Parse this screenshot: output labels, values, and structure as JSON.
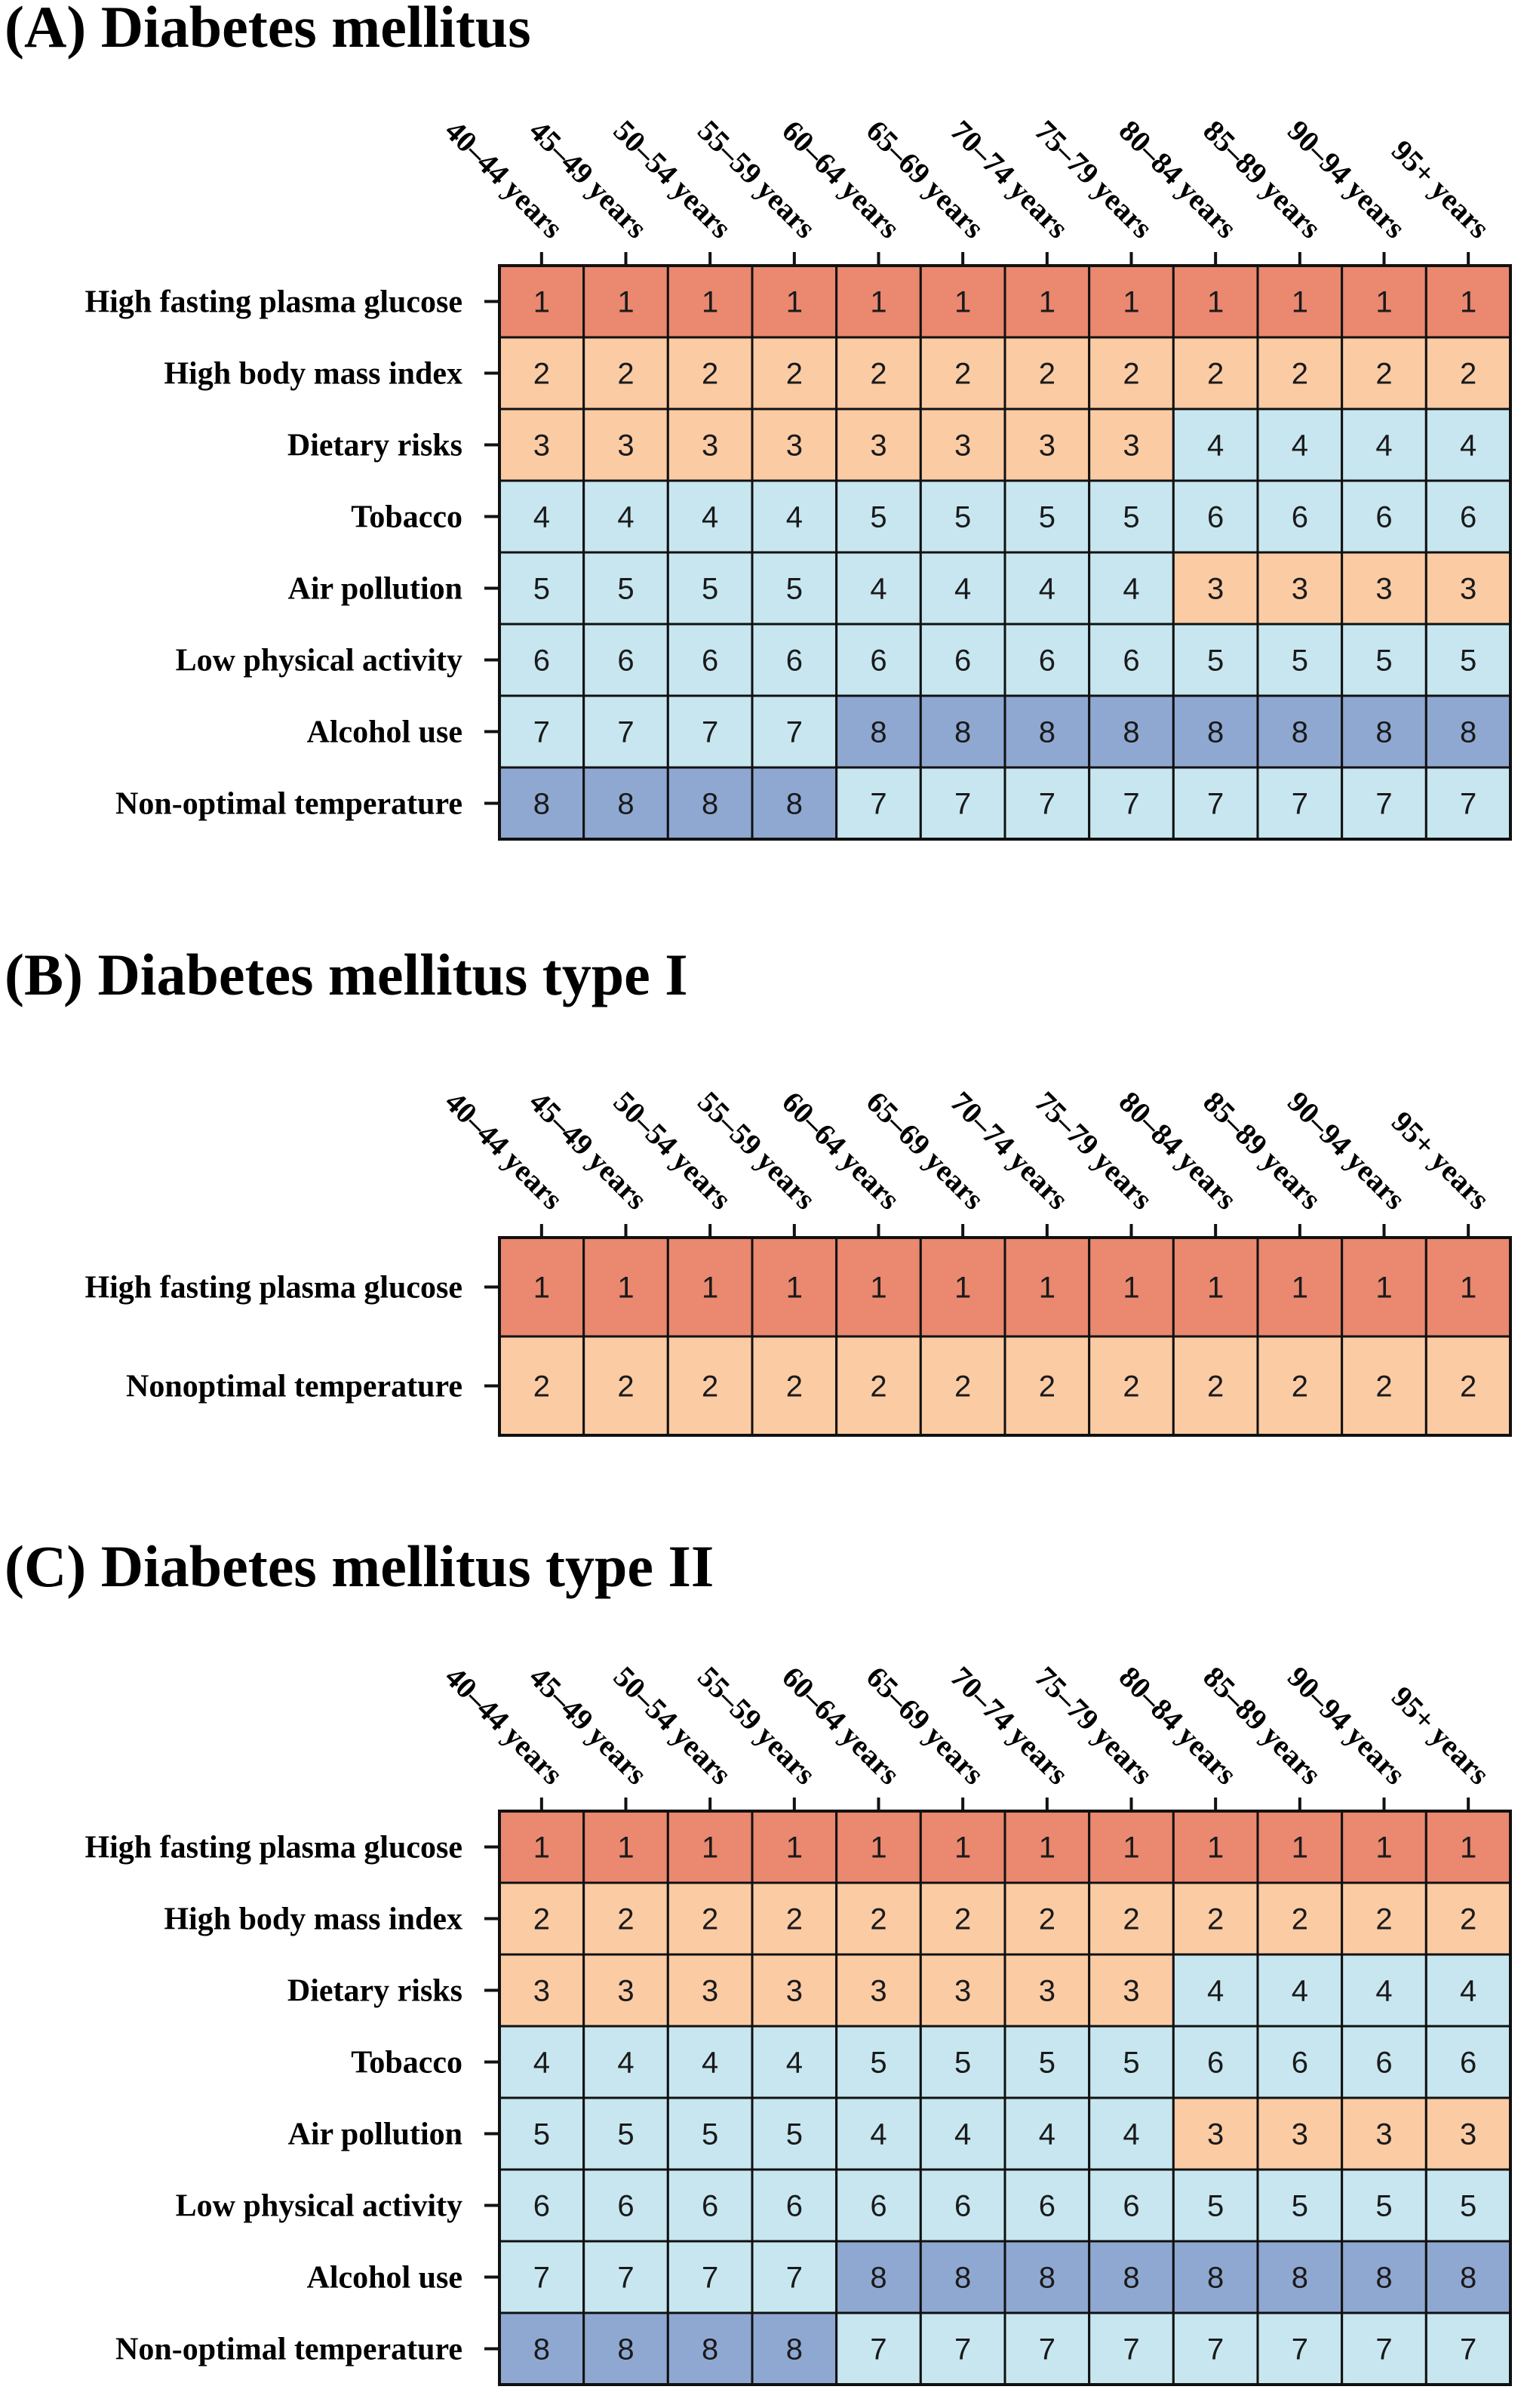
{
  "chart_data": [
    {
      "type": "heatmap",
      "title": "(A) Diabetes mellitus",
      "columns": [
        "40–44 years",
        "45–49 years",
        "50–54 years",
        "55–59 years",
        "60–64 years",
        "65–69 years",
        "70–74 years",
        "75–79 years",
        "80–84 years",
        "85–89 years",
        "90–94 years",
        "95+ years"
      ],
      "rows": [
        "High fasting plasma glucose",
        "High body mass index",
        "Dietary risks",
        "Tobacco",
        "Air pollution",
        "Low physical activity",
        "Alcohol use",
        "Non-optimal temperature"
      ],
      "values": [
        [
          1,
          1,
          1,
          1,
          1,
          1,
          1,
          1,
          1,
          1,
          1,
          1
        ],
        [
          2,
          2,
          2,
          2,
          2,
          2,
          2,
          2,
          2,
          2,
          2,
          2
        ],
        [
          3,
          3,
          3,
          3,
          3,
          3,
          3,
          3,
          4,
          4,
          4,
          4
        ],
        [
          4,
          4,
          4,
          4,
          5,
          5,
          5,
          5,
          6,
          6,
          6,
          6
        ],
        [
          5,
          5,
          5,
          5,
          4,
          4,
          4,
          4,
          3,
          3,
          3,
          3
        ],
        [
          6,
          6,
          6,
          6,
          6,
          6,
          6,
          6,
          5,
          5,
          5,
          5
        ],
        [
          7,
          7,
          7,
          7,
          8,
          8,
          8,
          8,
          8,
          8,
          8,
          8
        ],
        [
          8,
          8,
          8,
          8,
          7,
          7,
          7,
          7,
          7,
          7,
          7,
          7
        ]
      ]
    },
    {
      "type": "heatmap",
      "title": "(B) Diabetes mellitus type I",
      "columns": [
        "40–44 years",
        "45–49 years",
        "50–54 years",
        "55–59 years",
        "60–64 years",
        "65–69 years",
        "70–74 years",
        "75–79 years",
        "80–84 years",
        "85–89 years",
        "90–94 years",
        "95+ years"
      ],
      "rows": [
        "High fasting plasma glucose",
        "Nonoptimal temperature"
      ],
      "values": [
        [
          1,
          1,
          1,
          1,
          1,
          1,
          1,
          1,
          1,
          1,
          1,
          1
        ],
        [
          2,
          2,
          2,
          2,
          2,
          2,
          2,
          2,
          2,
          2,
          2,
          2
        ]
      ]
    },
    {
      "type": "heatmap",
      "title": "(C) Diabetes mellitus type II",
      "columns": [
        "40–44 years",
        "45–49 years",
        "50–54 years",
        "55–59 years",
        "60–64 years",
        "65–69 years",
        "70–74 years",
        "75–79 years",
        "80–84 years",
        "85–89 years",
        "90–94 years",
        "95+ years"
      ],
      "rows": [
        "High fasting plasma glucose",
        "High body mass index",
        "Dietary risks",
        "Tobacco",
        "Air pollution",
        "Low physical activity",
        "Alcohol use",
        "Non-optimal temperature"
      ],
      "values": [
        [
          1,
          1,
          1,
          1,
          1,
          1,
          1,
          1,
          1,
          1,
          1,
          1
        ],
        [
          2,
          2,
          2,
          2,
          2,
          2,
          2,
          2,
          2,
          2,
          2,
          2
        ],
        [
          3,
          3,
          3,
          3,
          3,
          3,
          3,
          3,
          4,
          4,
          4,
          4
        ],
        [
          4,
          4,
          4,
          4,
          5,
          5,
          5,
          5,
          6,
          6,
          6,
          6
        ],
        [
          5,
          5,
          5,
          5,
          4,
          4,
          4,
          4,
          3,
          3,
          3,
          3
        ],
        [
          6,
          6,
          6,
          6,
          6,
          6,
          6,
          6,
          5,
          5,
          5,
          5
        ],
        [
          7,
          7,
          7,
          7,
          8,
          8,
          8,
          8,
          8,
          8,
          8,
          8
        ],
        [
          8,
          8,
          8,
          8,
          7,
          7,
          7,
          7,
          7,
          7,
          7,
          7
        ]
      ]
    }
  ],
  "rank_colors": {
    "1": "#ea8870",
    "2": "#fbcba4",
    "3": "#fbcba4",
    "4": "#c7e6f0",
    "5": "#c7e6f0",
    "6": "#c7e6f0",
    "7": "#c7e6f0",
    "8": "#8fa8d2"
  }
}
